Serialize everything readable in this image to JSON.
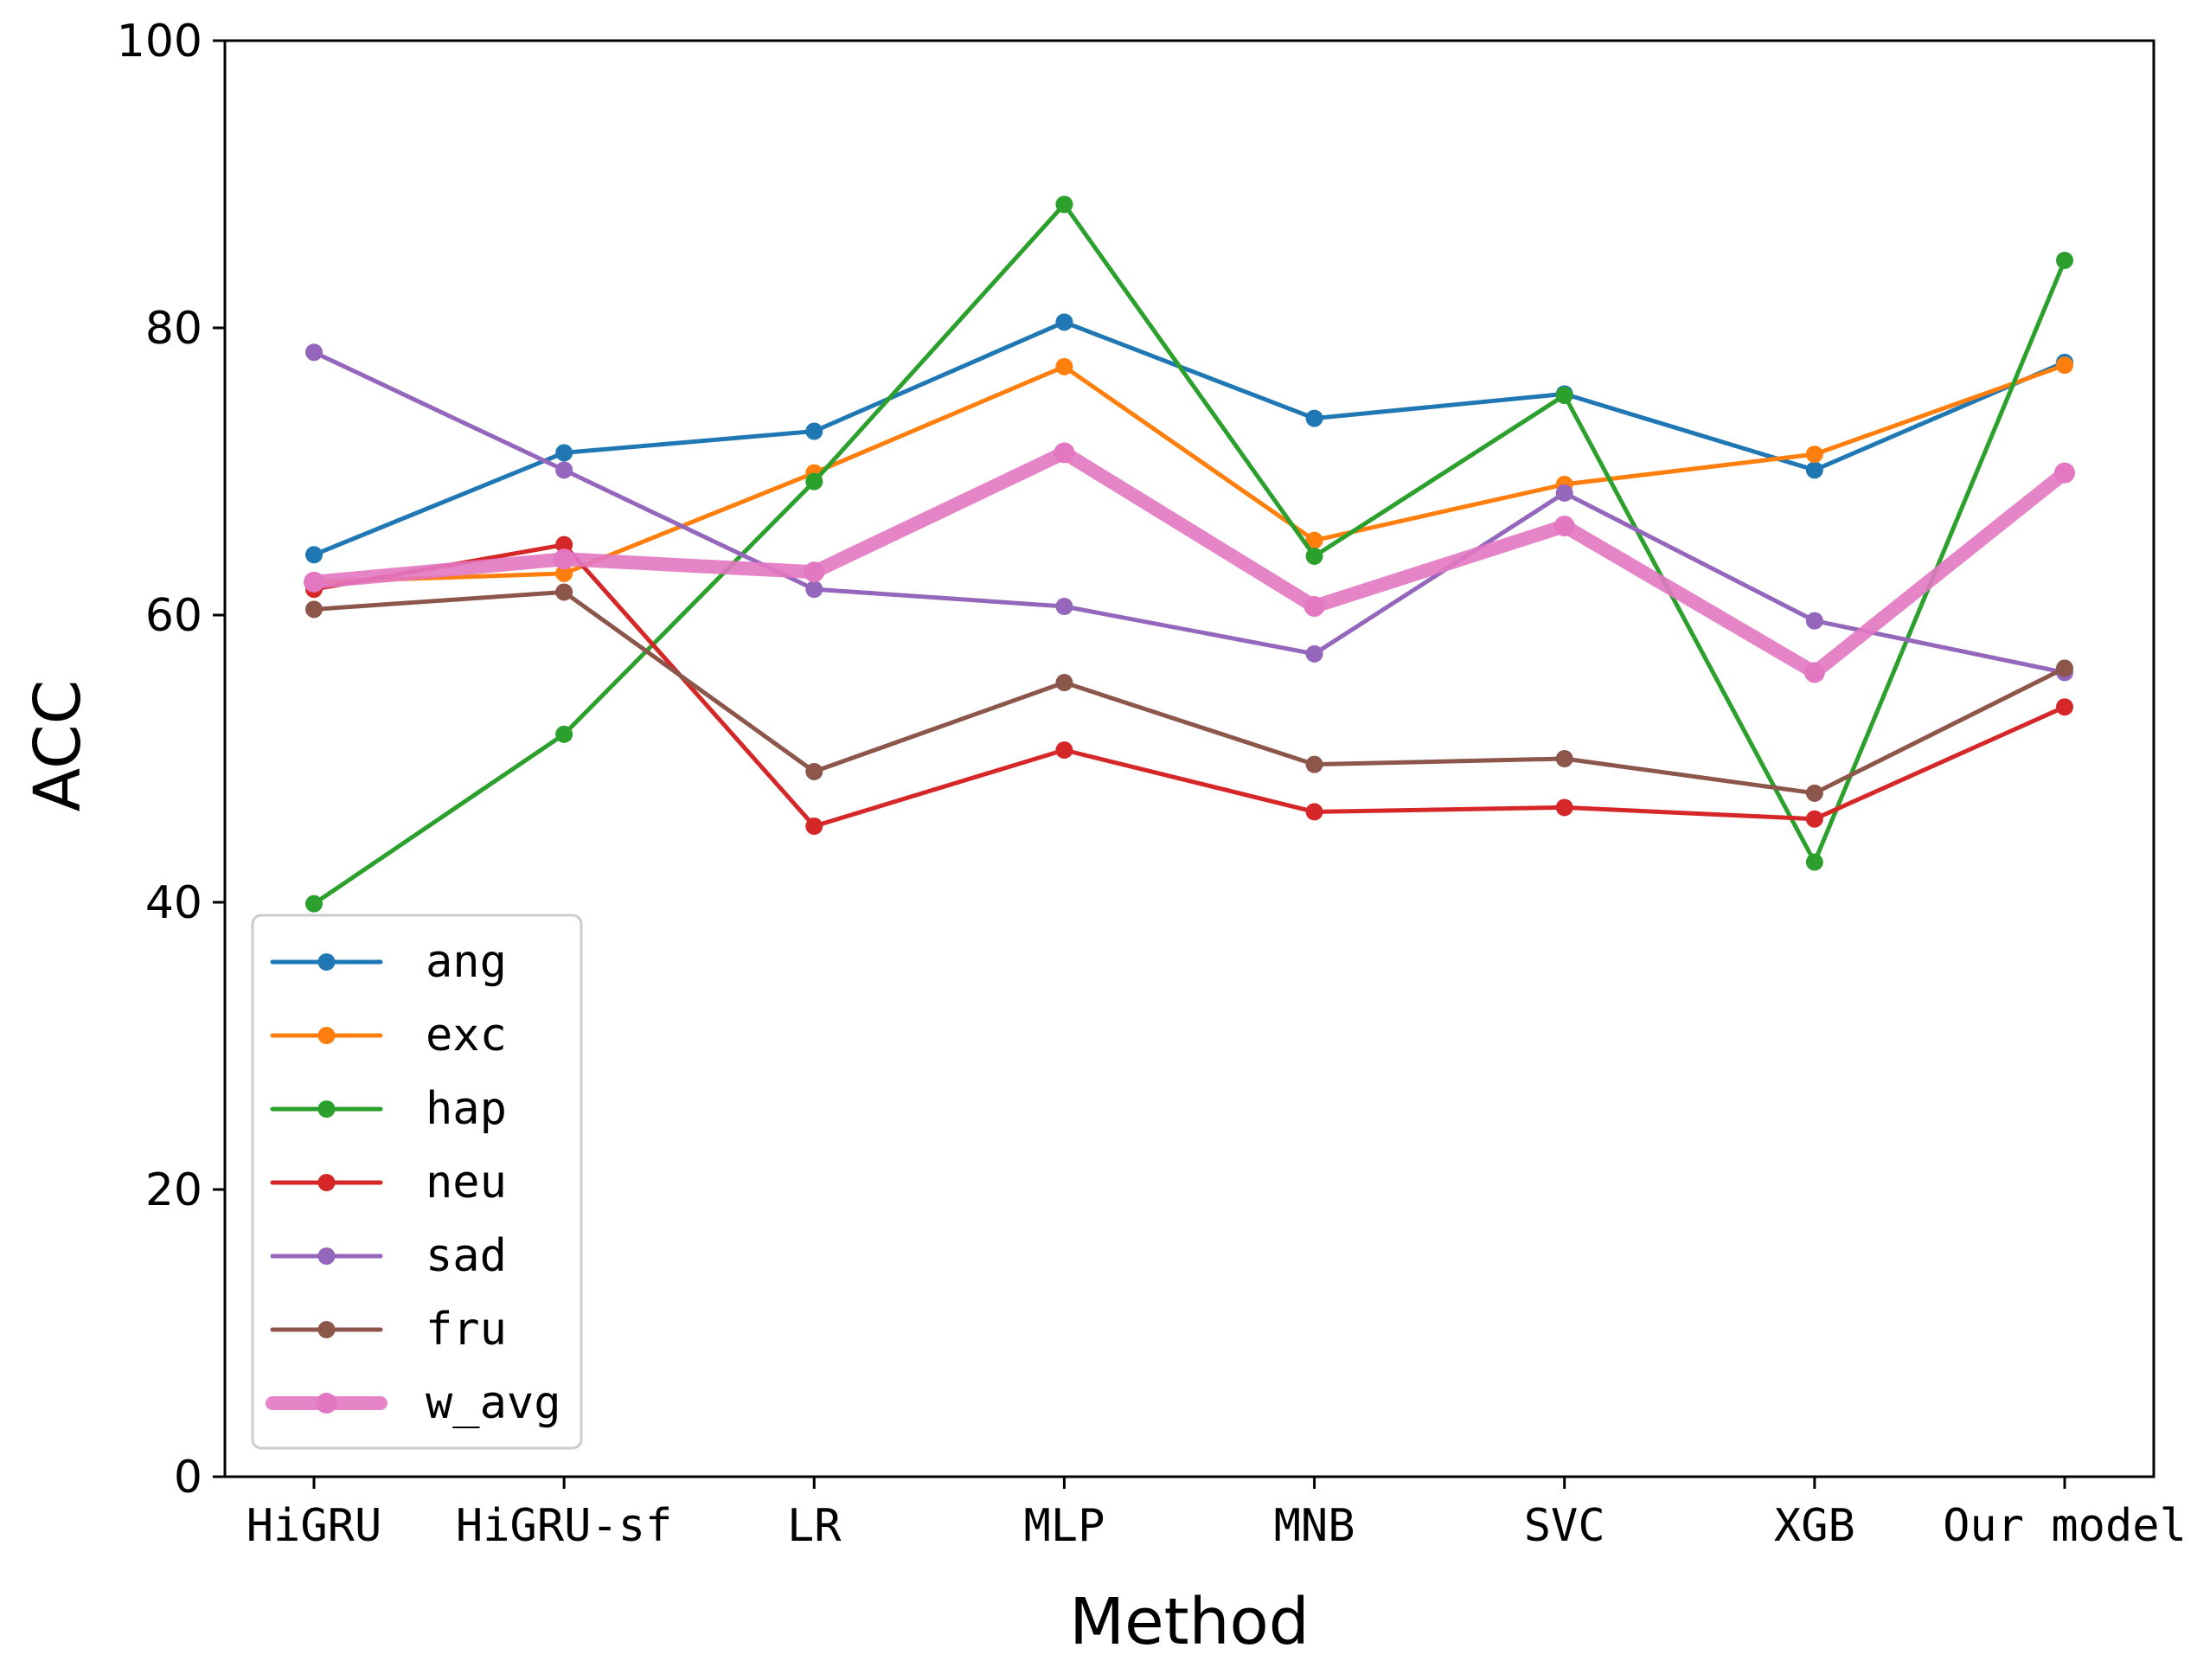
{
  "chart_data": {
    "type": "line",
    "xlabel": "Method",
    "ylabel": "ACC",
    "categories": [
      "HiGRU",
      "HiGRU-sf",
      "LR",
      "MLP",
      "MNB",
      "SVC",
      "XGB",
      "Our model"
    ],
    "ylim": [
      0,
      100
    ],
    "yticks": [
      0,
      20,
      40,
      60,
      80,
      100
    ],
    "grid": false,
    "legend_position": "lower-left",
    "series": [
      {
        "name": "ang",
        "color": "#1f77b4",
        "values": [
          64.2,
          71.3,
          72.8,
          80.4,
          73.7,
          75.4,
          70.1,
          77.6
        ]
      },
      {
        "name": "exc",
        "color": "#ff7f0e",
        "values": [
          62.3,
          62.9,
          69.9,
          77.3,
          65.2,
          69.1,
          71.2,
          77.4
        ]
      },
      {
        "name": "hap",
        "color": "#2ca02c",
        "values": [
          39.9,
          51.7,
          69.3,
          88.6,
          64.1,
          75.3,
          42.8,
          84.7
        ]
      },
      {
        "name": "neu",
        "color": "#d62728",
        "values": [
          61.8,
          64.9,
          45.3,
          50.6,
          46.3,
          46.6,
          45.8,
          53.6
        ]
      },
      {
        "name": "sad",
        "color": "#9467bd",
        "values": [
          78.3,
          70.1,
          61.8,
          60.6,
          57.3,
          68.5,
          59.6,
          56.0
        ]
      },
      {
        "name": "fru",
        "color": "#8c564b",
        "values": [
          60.4,
          61.6,
          49.1,
          55.3,
          49.6,
          50.0,
          47.6,
          56.3
        ]
      },
      {
        "name": "w_avg",
        "color": "#e377c2",
        "values": [
          62.3,
          63.9,
          63.0,
          71.3,
          60.6,
          66.2,
          56.0,
          69.9
        ],
        "emphasis": "thick"
      }
    ]
  }
}
